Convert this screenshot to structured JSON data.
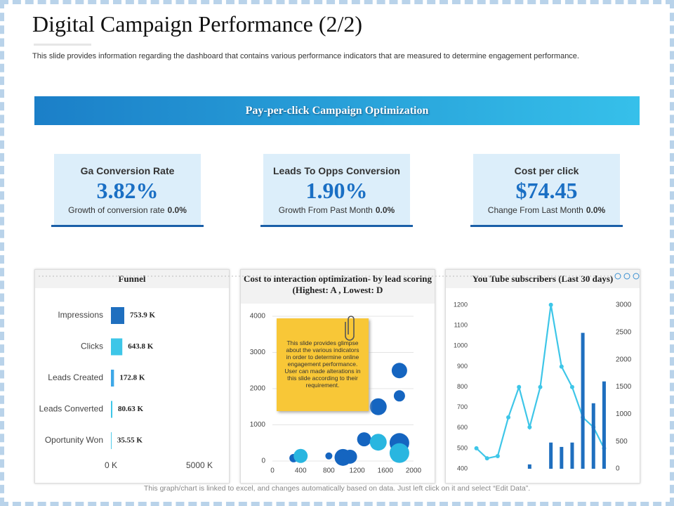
{
  "header": {
    "title": "Digital Campaign Performance (2/2)",
    "subtitle": "This slide provides information regarding the dashboard that contains various performance indicators that are measured to determine engagement performance."
  },
  "banner": "Pay-per-click Campaign Optimization",
  "kpis": [
    {
      "label": "Ga Conversion Rate",
      "value": "3.82%",
      "note": "Growth of conversion  rate",
      "note_value": "0.0%"
    },
    {
      "label": "Leads To Opps Conversion",
      "value": "1.90%",
      "note": "Growth From Past Month",
      "note_value": "0.0%"
    },
    {
      "label": "Cost per click",
      "value": "$74.45",
      "note": "Change From Last Month",
      "note_value": "0.0%"
    }
  ],
  "chart_data": [
    {
      "type": "bar",
      "orientation": "horizontal",
      "title": "Funnel",
      "categories": [
        "Impressions",
        "Clicks",
        "Leads Created",
        "Leads Converted",
        "Oportunity Won"
      ],
      "values": [
        753.9,
        643.8,
        172.8,
        80.63,
        35.55
      ],
      "value_labels": [
        "753.9 K",
        "643.8 K",
        "172.8 K",
        "80.63 K",
        "35.55 K"
      ],
      "colors": [
        "#1f6fbf",
        "#3ec6e8",
        "#3ea8e8",
        "#3ec6e8",
        "#3ec6e8"
      ],
      "xlim": [
        0,
        5000
      ],
      "xticks": [
        {
          "value": 0,
          "label": "0 K"
        },
        {
          "value": 5000,
          "label": "5000 K"
        }
      ]
    },
    {
      "type": "scatter",
      "title": "Cost to interaction optimization- by lead scoring (Highest: A , Lowest: D",
      "xlim": [
        0,
        2000
      ],
      "xticks": [
        0,
        400,
        800,
        1200,
        1600,
        2000
      ],
      "ylim": [
        0,
        4000
      ],
      "yticks": [
        0,
        1000,
        2000,
        3000,
        4000
      ],
      "grid": true,
      "series": [
        {
          "color": "#1565c0",
          "x": [
            300,
            800,
            1000,
            1100,
            1300,
            1500,
            1800,
            1800,
            1800
          ],
          "values": [
            80,
            140,
            100,
            120,
            600,
            1500,
            2500,
            1800,
            500
          ],
          "sizes": [
            6,
            5,
            12,
            10,
            10,
            12,
            11,
            8,
            14
          ]
        },
        {
          "color": "#29b6e0",
          "x": [
            400,
            1500,
            1800
          ],
          "values": [
            140,
            520,
            220
          ],
          "sizes": [
            10,
            12,
            14
          ]
        }
      ]
    },
    {
      "type": "combo",
      "title": "You Tube subscribers (Last 30 days)",
      "categories": [
        null,
        null,
        null,
        null,
        null,
        null,
        null,
        null,
        null,
        null,
        null,
        null,
        null
      ],
      "ylim": [
        400,
        1200
      ],
      "yticks": [
        400,
        500,
        600,
        700,
        800,
        900,
        1000,
        1100,
        1200
      ],
      "y2lim": [
        0,
        3000
      ],
      "y2ticks": [
        0,
        500,
        1000,
        1500,
        2000,
        2500,
        3000
      ],
      "series": [
        {
          "type": "line",
          "color": "#3ec6e8",
          "values": [
            500,
            451,
            462,
            651,
            799,
            603,
            799,
            1201,
            899,
            799,
            651,
            603,
            500
          ]
        },
        {
          "type": "bar",
          "axis": "y2",
          "color": "#1f6fbf",
          "values": [
            null,
            null,
            null,
            null,
            null,
            80,
            null,
            480,
            400,
            480,
            2490,
            1200,
            1600
          ]
        }
      ]
    }
  ],
  "note": "This slide provides glimpse about the various indicators in order to determine online engagement performance. User can made alterations in this slide according to their requirement.",
  "footer": "This graph/chart is linked to excel, and changes automatically based on data. Just left click on it and select “Edit Data”."
}
